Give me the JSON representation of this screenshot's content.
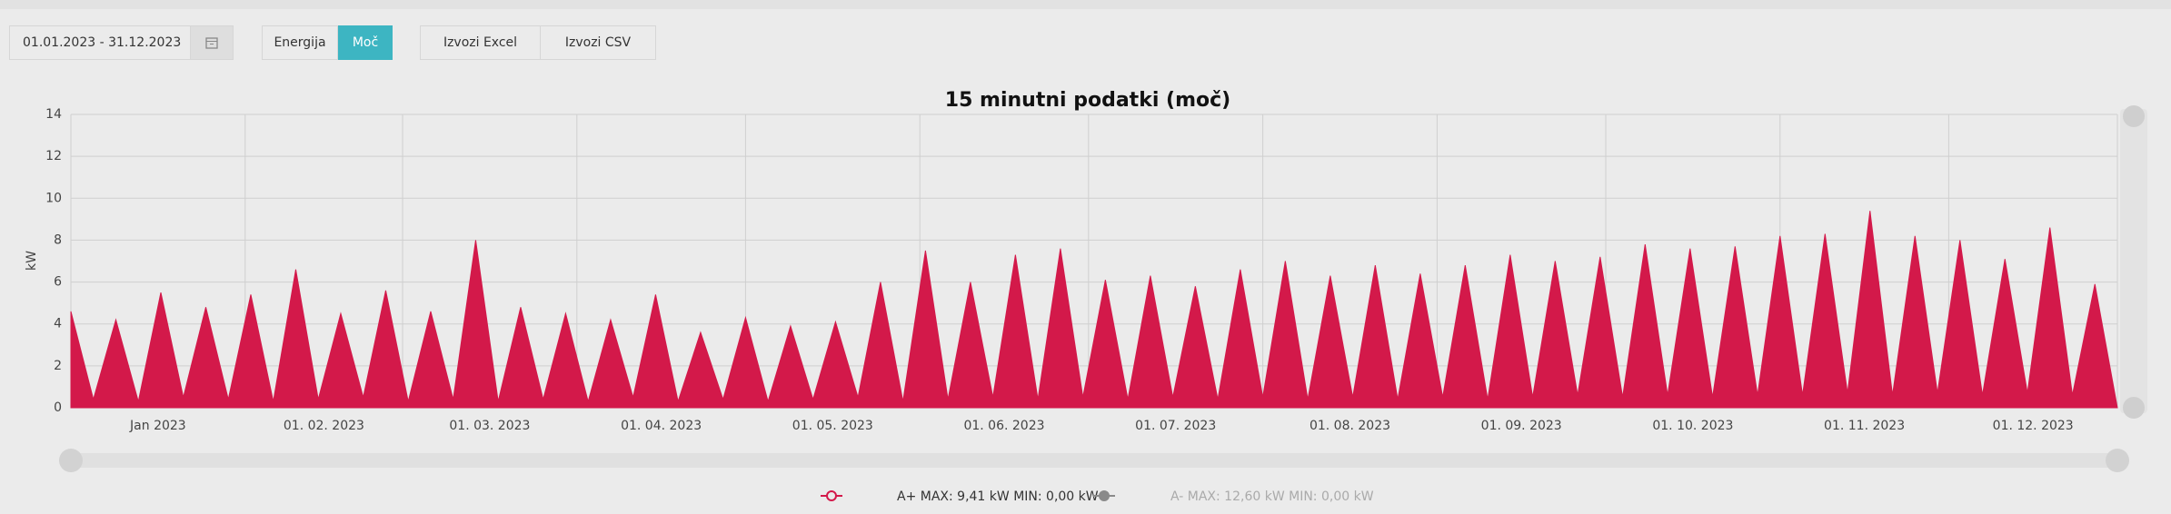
{
  "toolbar": {
    "date_range": "01.01.2023 - 31.12.2023",
    "buttons": [
      "Energija",
      "Moč"
    ],
    "active_button": 1,
    "exports": [
      "Izvozi Excel",
      "Izvozi CSV"
    ]
  },
  "chart_data": {
    "type": "area",
    "title": "15 minutni podatki (moč)",
    "y_label": "kW",
    "xlim": [
      "2023-01-01",
      "2023-12-31"
    ],
    "xticks": [
      {
        "value": "2023-01-01",
        "label": "Jan 2023"
      },
      {
        "value": "2023-02-01",
        "label": "01. 02. 2023"
      },
      {
        "value": "2023-03-01",
        "label": "01. 03. 2023"
      },
      {
        "value": "2023-04-01",
        "label": "01. 04. 2023"
      },
      {
        "value": "2023-05-01",
        "label": "01. 05. 2023"
      },
      {
        "value": "2023-06-01",
        "label": "01. 06. 2023"
      },
      {
        "value": "2023-07-01",
        "label": "01. 07. 2023"
      },
      {
        "value": "2023-08-01",
        "label": "01. 08. 2023"
      },
      {
        "value": "2023-09-01",
        "label": "01. 09. 2023"
      },
      {
        "value": "2023-10-01",
        "label": "01. 10. 2023"
      },
      {
        "value": "2023-11-01",
        "label": "01. 11. 2023"
      },
      {
        "value": "2023-12-01",
        "label": "01. 12. 2023"
      }
    ],
    "ylim": [
      0,
      14
    ],
    "yticks": [
      0,
      2,
      4,
      6,
      8,
      10,
      12,
      14
    ],
    "grid": true,
    "x": [
      "2023-01-01",
      "2023-01-05",
      "2023-01-09",
      "2023-01-13",
      "2023-01-17",
      "2023-01-21",
      "2023-01-25",
      "2023-01-29",
      "2023-02-02",
      "2023-02-06",
      "2023-02-10",
      "2023-02-14",
      "2023-02-18",
      "2023-02-22",
      "2023-02-26",
      "2023-03-02",
      "2023-03-06",
      "2023-03-10",
      "2023-03-14",
      "2023-03-18",
      "2023-03-22",
      "2023-03-26",
      "2023-03-30",
      "2023-04-03",
      "2023-04-07",
      "2023-04-11",
      "2023-04-15",
      "2023-04-19",
      "2023-04-23",
      "2023-04-27",
      "2023-05-01",
      "2023-05-05",
      "2023-05-09",
      "2023-05-13",
      "2023-05-17",
      "2023-05-21",
      "2023-05-25",
      "2023-05-29",
      "2023-06-02",
      "2023-06-06",
      "2023-06-10",
      "2023-06-14",
      "2023-06-18",
      "2023-06-22",
      "2023-06-26",
      "2023-06-30",
      "2023-07-04",
      "2023-07-08",
      "2023-07-12",
      "2023-07-16",
      "2023-07-20",
      "2023-07-24",
      "2023-07-28",
      "2023-08-01",
      "2023-08-05",
      "2023-08-09",
      "2023-08-13",
      "2023-08-17",
      "2023-08-21",
      "2023-08-25",
      "2023-08-29",
      "2023-09-02",
      "2023-09-06",
      "2023-09-10",
      "2023-09-14",
      "2023-09-18",
      "2023-09-22",
      "2023-09-26",
      "2023-09-30",
      "2023-10-04",
      "2023-10-08",
      "2023-10-12",
      "2023-10-16",
      "2023-10-20",
      "2023-10-24",
      "2023-10-28",
      "2023-11-01",
      "2023-11-05",
      "2023-11-09",
      "2023-11-13",
      "2023-11-17",
      "2023-11-21",
      "2023-11-25",
      "2023-11-29",
      "2023-12-03",
      "2023-12-07",
      "2023-12-11",
      "2023-12-15",
      "2023-12-19",
      "2023-12-23",
      "2023-12-27",
      "2023-12-31"
    ],
    "series": [
      {
        "name": "A+",
        "color": "#d3194a",
        "values": [
          4.6,
          0.4,
          4.2,
          0.3,
          5.5,
          0.5,
          4.8,
          0.4,
          5.4,
          0.3,
          6.6,
          0.4,
          4.5,
          0.5,
          5.6,
          0.3,
          4.6,
          0.4,
          8.0,
          0.3,
          4.8,
          0.4,
          4.5,
          0.3,
          4.2,
          0.5,
          5.4,
          0.3,
          3.6,
          0.4,
          4.3,
          0.3,
          3.9,
          0.4,
          4.1,
          0.5,
          6.0,
          0.3,
          7.5,
          0.4,
          6.0,
          0.5,
          7.3,
          0.4,
          7.6,
          0.5,
          6.1,
          0.4,
          6.3,
          0.5,
          5.8,
          0.4,
          6.6,
          0.5,
          7.0,
          0.4,
          6.3,
          0.5,
          6.8,
          0.4,
          6.4,
          0.5,
          6.8,
          0.4,
          7.3,
          0.5,
          7.0,
          0.6,
          7.2,
          0.5,
          7.8,
          0.6,
          7.6,
          0.5,
          7.7,
          0.6,
          8.2,
          0.6,
          8.3,
          0.7,
          9.4,
          0.6,
          8.2,
          0.7,
          8.0,
          0.6,
          7.1,
          0.7,
          8.6,
          0.6,
          5.9,
          0
        ]
      }
    ],
    "legend": [
      {
        "label": "A+ MAX: 9,41 kW MIN: 0,00 kW",
        "color": "#d3194a"
      },
      {
        "label": "A- MAX: 12,60 kW MIN: 0,00 kW",
        "color": "#8a8a8a"
      }
    ]
  }
}
